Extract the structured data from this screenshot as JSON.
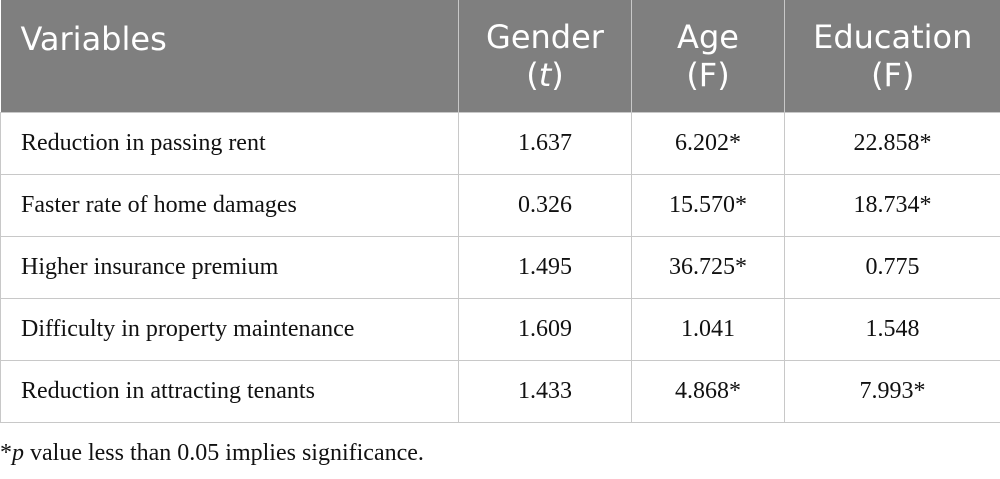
{
  "table": {
    "headers": [
      {
        "line1": "Variables",
        "line2": ""
      },
      {
        "line1": "Gender",
        "line2": "(t)"
      },
      {
        "line1": "Age",
        "line2": "(F)"
      },
      {
        "line1": "Education",
        "line2": "(F)"
      }
    ],
    "rows": [
      {
        "variable": "Reduction in passing rent",
        "gender": "1.637",
        "age": "6.202*",
        "education": "22.858*"
      },
      {
        "variable": "Faster rate of home damages",
        "gender": "0.326",
        "age": "15.570*",
        "education": "18.734*"
      },
      {
        "variable": "Higher insurance premium",
        "gender": "1.495",
        "age": "36.725*",
        "education": "0.775"
      },
      {
        "variable": "Difficulty in property maintenance",
        "gender": "1.609",
        "age": "1.041",
        "education": "1.548"
      },
      {
        "variable": "Reduction in attracting tenants",
        "gender": "1.433",
        "age": "4.868*",
        "education": "7.993*"
      }
    ]
  },
  "footnote": {
    "star": "*",
    "p": "p",
    "text": " value less than 0.05 implies significance."
  }
}
